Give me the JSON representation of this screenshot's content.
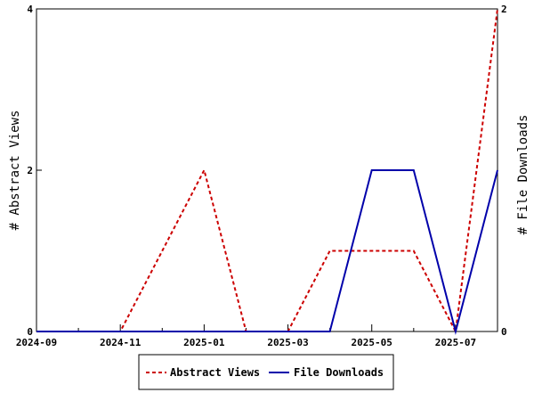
{
  "chart_data": {
    "type": "line",
    "x": [
      "2024-09",
      "2024-10",
      "2024-11",
      "2024-12",
      "2025-01",
      "2025-02",
      "2025-03",
      "2025-04",
      "2025-05",
      "2025-06",
      "2025-07",
      "2025-08"
    ],
    "x_tick_labels": [
      "2024-09",
      "2024-11",
      "2025-01",
      "2025-03",
      "2025-05",
      "2025-07"
    ],
    "ylabel": "# Abstract Views",
    "y2label": "# File Downloads",
    "ylim": [
      0,
      4
    ],
    "y_ticks": [
      "0",
      "2",
      "4"
    ],
    "y2lim": [
      0,
      2
    ],
    "y2_ticks": [
      "0",
      "2"
    ],
    "grid": false,
    "legend_position": "bottom",
    "series": [
      {
        "name": "Abstract Views",
        "axis": "left",
        "color": "#cc0000",
        "style": "dashed",
        "values": [
          0,
          0,
          0,
          1,
          2,
          0,
          0,
          1,
          1,
          1,
          0,
          4
        ]
      },
      {
        "name": "File Downloads",
        "axis": "right",
        "color": "#0000aa",
        "style": "solid",
        "values": [
          0,
          0,
          0,
          0,
          0,
          0,
          0,
          0,
          1,
          1,
          0,
          1
        ]
      }
    ]
  }
}
